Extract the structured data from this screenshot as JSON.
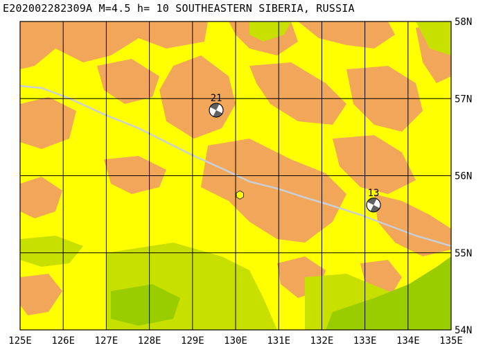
{
  "title": "E202002282309A M=4.5 h= 10 SOUTHEASTERN SIBERIA, RUSSIA",
  "map": {
    "lon_labels": [
      "125E",
      "126E",
      "127E",
      "128E",
      "129E",
      "130E",
      "131E",
      "132E",
      "133E",
      "134E",
      "135E"
    ],
    "lat_labels": [
      "58N",
      "57N",
      "56N",
      "55N",
      "54N"
    ],
    "lon_range": [
      125,
      135
    ],
    "lat_range": [
      54,
      58
    ],
    "colors": {
      "high": "#f2a65a",
      "mid": "#ffff00",
      "low": "#c8e000",
      "lowest": "#9acd00",
      "line": "#c8cfd8",
      "grid": "#000000"
    }
  },
  "events": [
    {
      "label": "21",
      "lon": 129.55,
      "lat": 56.85,
      "type": "focal-mechanism"
    },
    {
      "label": "13",
      "lon": 133.2,
      "lat": 55.62,
      "type": "focal-mechanism"
    }
  ],
  "epicenter": {
    "lon": 130.1,
    "lat": 55.75,
    "color": "#ffff00"
  }
}
